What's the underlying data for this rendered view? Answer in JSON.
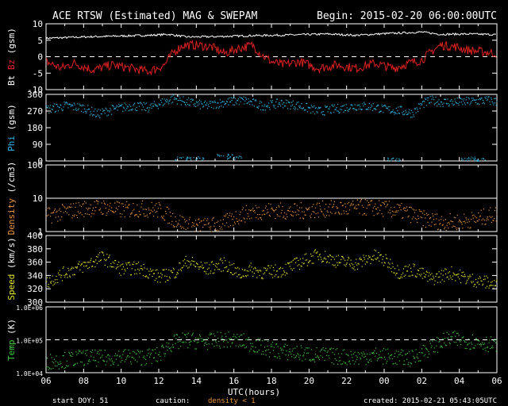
{
  "header": {
    "title": "ACE RTSW (Estimated) MAG & SWEPAM",
    "begin": "Begin: 2015-02-20 06:00:00UTC"
  },
  "footer": {
    "start_doy": "start DOY:  51",
    "caution": "caution:",
    "density_note": "density < 1",
    "created": "created: 2015-02-21 05:43:05UTC"
  },
  "colors": {
    "bz": "#e02020",
    "bt": "#ffffff",
    "phi": "#2eb8e6",
    "density": "#e8923a",
    "speed": "#e6e62a",
    "temp": "#3ec83e",
    "text": "#ffffff",
    "frame": "#ffffff"
  },
  "chart_data": [
    {
      "type": "line",
      "panel": "mag",
      "ylabel_parts": [
        "Bt",
        "Bz",
        "(gsm)"
      ],
      "ylim": [
        -10,
        10
      ],
      "yticks": [
        10,
        5,
        0,
        -5,
        -10
      ],
      "reference_lines": [
        0
      ],
      "x_hours": [
        6,
        8,
        10,
        12,
        14,
        16,
        18,
        20,
        22,
        24,
        26,
        28,
        30
      ],
      "series": [
        {
          "name": "Bt",
          "points": [
            [
              6,
              5.6
            ],
            [
              8,
              6.0
            ],
            [
              10,
              6.3
            ],
            [
              11.5,
              6.5
            ],
            [
              12.5,
              6.8
            ],
            [
              13.5,
              6.0
            ],
            [
              15,
              6.1
            ],
            [
              17,
              6.4
            ],
            [
              19,
              6.6
            ],
            [
              21,
              6.9
            ],
            [
              22.5,
              6.5
            ],
            [
              24,
              7.0
            ],
            [
              26,
              7.5
            ],
            [
              27,
              6.8
            ],
            [
              28.5,
              6.9
            ],
            [
              30,
              6.7
            ]
          ]
        },
        {
          "name": "Bz",
          "points": [
            [
              6,
              -1.5
            ],
            [
              6.8,
              -3.5
            ],
            [
              7.5,
              -2.0
            ],
            [
              8.5,
              -4.0
            ],
            [
              9.5,
              -2.5
            ],
            [
              10.5,
              -3.5
            ],
            [
              11.5,
              -4.5
            ],
            [
              12.3,
              -2.5
            ],
            [
              12.8,
              1.5
            ],
            [
              13.3,
              3.5
            ],
            [
              14,
              3.5
            ],
            [
              14.8,
              3.0
            ],
            [
              15.5,
              1.0
            ],
            [
              16.2,
              2.5
            ],
            [
              17,
              3.5
            ],
            [
              17.5,
              0.5
            ],
            [
              18,
              -1.5
            ],
            [
              18.6,
              -2.5
            ],
            [
              19.5,
              -1.5
            ],
            [
              20.5,
              -3.5
            ],
            [
              21.5,
              -2.5
            ],
            [
              22.5,
              -3.5
            ],
            [
              23.5,
              -2.0
            ],
            [
              24.5,
              -3.5
            ],
            [
              25.3,
              -2.0
            ],
            [
              26,
              -1.0
            ],
            [
              26.5,
              1.5
            ],
            [
              27,
              3.5
            ],
            [
              27.8,
              3.0
            ],
            [
              28.5,
              2.0
            ],
            [
              29.2,
              1.5
            ],
            [
              30,
              1.0
            ]
          ]
        }
      ]
    },
    {
      "type": "scatter",
      "panel": "phi",
      "ylabel_parts": [
        "Phi",
        "(gsm)"
      ],
      "ylim": [
        0,
        360
      ],
      "yticks": [
        360,
        270,
        180,
        90,
        0
      ],
      "series": [
        {
          "name": "Phi",
          "points": [
            [
              6,
              280
            ],
            [
              7,
              300
            ],
            [
              8,
              290
            ],
            [
              8.7,
              255
            ],
            [
              9.5,
              280
            ],
            [
              10.5,
              300
            ],
            [
              11.5,
              290
            ],
            [
              12.2,
              320
            ],
            [
              12.8,
              340
            ],
            [
              13.5,
              320
            ],
            [
              14.5,
              300
            ],
            [
              15.5,
              320
            ],
            [
              16.5,
              330
            ],
            [
              17.5,
              300
            ],
            [
              18.5,
              315
            ],
            [
              19.5,
              300
            ],
            [
              20.5,
              270
            ],
            [
              21.5,
              285
            ],
            [
              22.5,
              300
            ],
            [
              23.5,
              295
            ],
            [
              24,
              280
            ],
            [
              24.8,
              275
            ],
            [
              25.5,
              260
            ],
            [
              26,
              310
            ],
            [
              26.5,
              330
            ],
            [
              27,
              320
            ],
            [
              28,
              320
            ],
            [
              28.8,
              325
            ],
            [
              29.5,
              330
            ],
            [
              30,
              320
            ],
            [
              13.2,
              15
            ],
            [
              14,
              18
            ],
            [
              15.5,
              30
            ],
            [
              16,
              20
            ],
            [
              24.5,
              10
            ],
            [
              28.5,
              15
            ],
            [
              29,
              8
            ]
          ]
        }
      ]
    },
    {
      "type": "scatter",
      "panel": "density",
      "ylabel_parts": [
        "Density",
        "(/cm3)"
      ],
      "yscale": "log",
      "ylim": [
        1,
        100
      ],
      "yticks": [
        100,
        10,
        1
      ],
      "reference_lines": [
        10
      ],
      "series": [
        {
          "name": "Density",
          "points": [
            [
              6,
              3.0
            ],
            [
              7,
              4.0
            ],
            [
              8,
              5.0
            ],
            [
              9,
              5.5
            ],
            [
              10,
              4.5
            ],
            [
              11,
              5.0
            ],
            [
              12,
              4.5
            ],
            [
              12.7,
              2.5
            ],
            [
              13.5,
              1.6
            ],
            [
              14.5,
              1.5
            ],
            [
              15.5,
              1.8
            ],
            [
              16.2,
              3.0
            ],
            [
              17,
              4.0
            ],
            [
              18,
              4.5
            ],
            [
              19,
              4.0
            ],
            [
              20,
              4.5
            ],
            [
              21,
              5.0
            ],
            [
              22,
              5.0
            ],
            [
              23,
              5.5
            ],
            [
              24,
              5.0
            ],
            [
              25,
              4.0
            ],
            [
              26,
              2.5
            ],
            [
              27,
              2.0
            ],
            [
              28,
              2.0
            ],
            [
              29,
              2.5
            ],
            [
              30,
              3.5
            ]
          ]
        }
      ]
    },
    {
      "type": "scatter",
      "panel": "speed",
      "ylabel_parts": [
        "Speed",
        "(km/s)"
      ],
      "ylim": [
        300,
        400
      ],
      "yticks": [
        400,
        380,
        360,
        340,
        320,
        300
      ],
      "series": [
        {
          "name": "Speed",
          "points": [
            [
              6,
              330
            ],
            [
              7,
              345
            ],
            [
              8,
              355
            ],
            [
              9,
              368
            ],
            [
              10,
              350
            ],
            [
              11,
              352
            ],
            [
              12,
              338
            ],
            [
              12.8,
              345
            ],
            [
              13.5,
              362
            ],
            [
              14.5,
              350
            ],
            [
              15.5,
              358
            ],
            [
              16.3,
              342
            ],
            [
              16.8,
              350
            ],
            [
              17.5,
              345
            ],
            [
              18.5,
              348
            ],
            [
              19.5,
              360
            ],
            [
              20.5,
              372
            ],
            [
              21.5,
              362
            ],
            [
              22.5,
              358
            ],
            [
              23.5,
              370
            ],
            [
              24.2,
              360
            ],
            [
              24.8,
              345
            ],
            [
              25.5,
              350
            ],
            [
              26.5,
              335
            ],
            [
              27.5,
              345
            ],
            [
              28.5,
              335
            ],
            [
              29.5,
              330
            ],
            [
              30,
              325
            ]
          ]
        }
      ]
    },
    {
      "type": "scatter",
      "panel": "temp",
      "ylabel_parts": [
        "Temp",
        "(K)"
      ],
      "yscale": "log",
      "ylim": [
        10000,
        1000000
      ],
      "ytick_labels": [
        "1.0E+06",
        "1.0E+05",
        "1.0E+04"
      ],
      "yticks": [
        1000000,
        100000,
        10000
      ],
      "reference_lines": [
        100000
      ],
      "series": [
        {
          "name": "Temp",
          "points": [
            [
              6,
              22000
            ],
            [
              7,
              25000
            ],
            [
              8,
              30000
            ],
            [
              9,
              28000
            ],
            [
              10,
              32000
            ],
            [
              11,
              30000
            ],
            [
              12,
              35000
            ],
            [
              12.7,
              80000
            ],
            [
              13.5,
              100000
            ],
            [
              14.5,
              90000
            ],
            [
              15.5,
              105000
            ],
            [
              16.5,
              90000
            ],
            [
              17.5,
              60000
            ],
            [
              18.5,
              45000
            ],
            [
              19.5,
              40000
            ],
            [
              20.5,
              35000
            ],
            [
              21.5,
              32000
            ],
            [
              22.5,
              30000
            ],
            [
              23.5,
              35000
            ],
            [
              24.5,
              30000
            ],
            [
              25.5,
              28000
            ],
            [
              26.5,
              60000
            ],
            [
              27.5,
              110000
            ],
            [
              28.5,
              95000
            ],
            [
              29.5,
              80000
            ],
            [
              30,
              60000
            ]
          ]
        }
      ]
    }
  ],
  "x_axis": {
    "tick_labels": [
      "06",
      "08",
      "10",
      "12",
      "14",
      "16",
      "18",
      "20",
      "22",
      "00",
      "02",
      "04",
      "06"
    ],
    "xlabel": "UTC(hours)",
    "range": [
      6,
      30
    ]
  }
}
